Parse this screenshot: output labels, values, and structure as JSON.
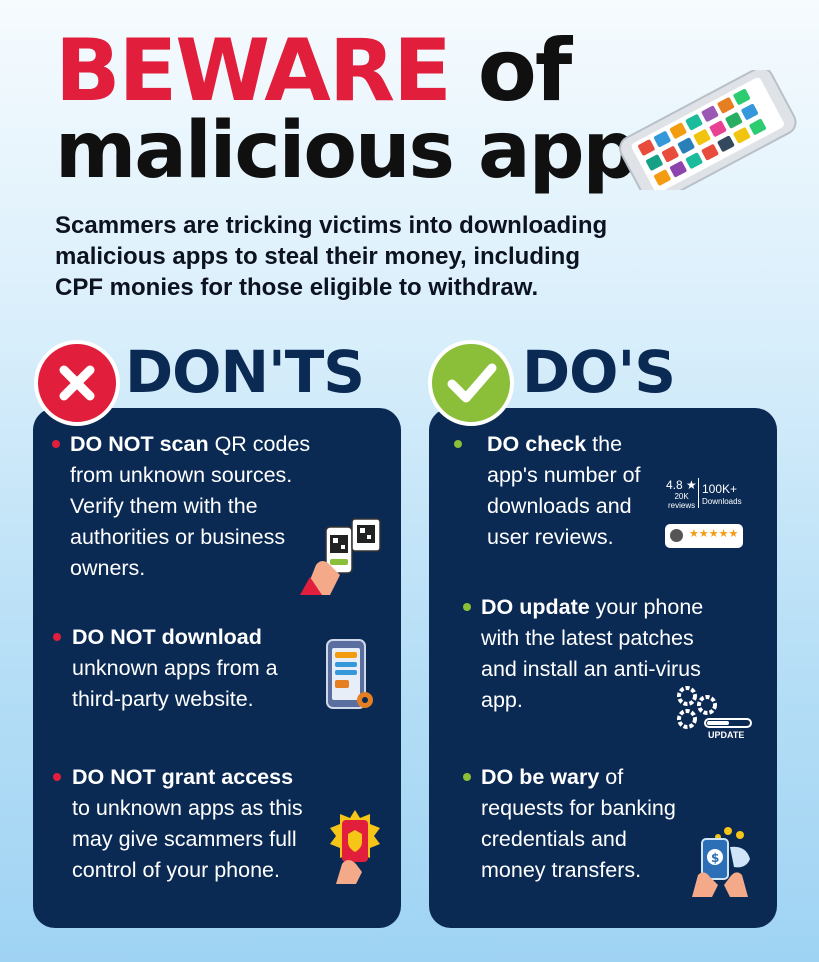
{
  "title": {
    "highlight": "BEWARE",
    "rest_line1": "of",
    "line2": "malicious apps"
  },
  "subtitle": {
    "line1": "Scammers are tricking victims into downloading",
    "line2": "malicious apps to steal their money, including",
    "line3": "CPF monies for those eligible to withdraw."
  },
  "donts": {
    "label": "DON'TS",
    "icon": "cross-icon",
    "items": [
      {
        "bold": "DO NOT scan",
        "lines": [
          " QR codes",
          "from unknown sources.",
          "Verify them with the",
          "authorities or business",
          "owners."
        ],
        "icon": "qr-scan-icon"
      },
      {
        "bold": "DO NOT download",
        "lines": [
          "unknown apps from a",
          "third-party website."
        ],
        "icon": "phone-download-icon"
      },
      {
        "bold": "DO NOT grant access",
        "lines": [
          "to unknown apps as this",
          "may give scammers full",
          "control of your phone."
        ],
        "icon": "phone-warning-icon"
      }
    ]
  },
  "dos": {
    "label": "DO'S",
    "icon": "check-icon",
    "items": [
      {
        "bold": "DO check",
        "lines": [
          " the",
          "app's number of",
          "downloads and",
          "user reviews."
        ],
        "icon": "rating-icon",
        "rating": {
          "score": "4.8 ★",
          "reviews": "20K\nreviews",
          "downloads": "100K+",
          "downloads_label": "Downloads",
          "stars": "★★★★★"
        }
      },
      {
        "bold": "DO update",
        "lines": [
          " your phone",
          "with the latest patches",
          "and install an anti-virus",
          "app."
        ],
        "icon": "gears-update-icon",
        "update_label": "UPDATE"
      },
      {
        "bold": "DO be wary",
        "lines": [
          " of",
          "requests for banking",
          "credentials and",
          "money transfers."
        ],
        "icon": "phone-money-icon"
      }
    ]
  },
  "colors": {
    "accent_red": "#e11f3c",
    "accent_green": "#8bbf3a",
    "panel_navy": "#0a2a54"
  }
}
